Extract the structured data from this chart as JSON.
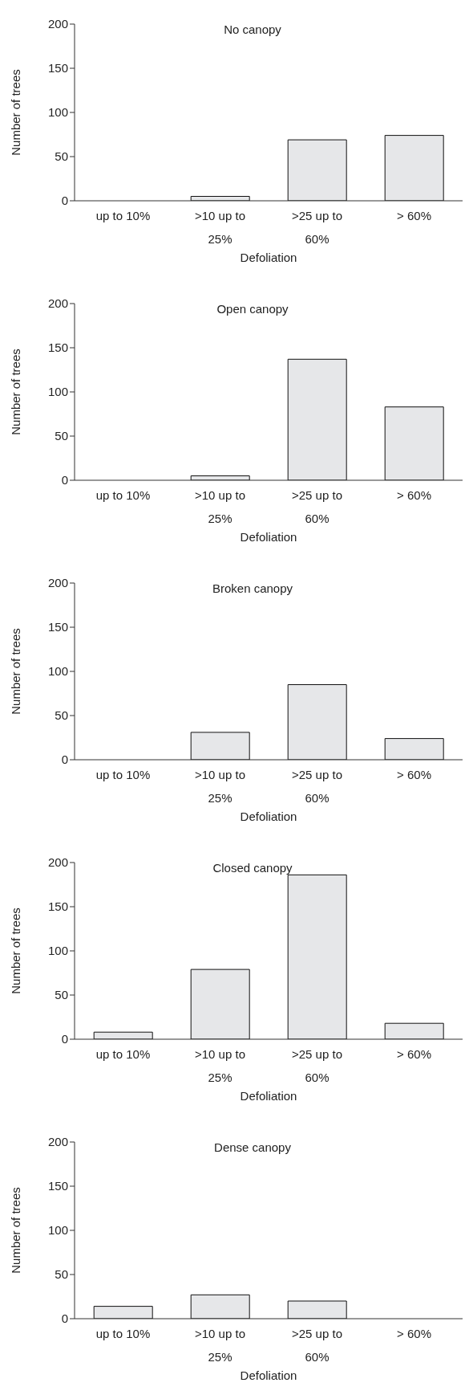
{
  "chart_data": [
    {
      "type": "bar",
      "title": "No canopy",
      "xlabel": "Defoliation",
      "ylabel": "Number of trees",
      "categories": [
        "up to 10%",
        ">10 up to 25%",
        ">25 up to 60%",
        "> 60%"
      ],
      "values": [
        0,
        5,
        69,
        74
      ],
      "color": "#e6e7e9",
      "ylim": [
        0,
        200
      ],
      "yticks": [
        0,
        50,
        100,
        150,
        200
      ]
    },
    {
      "type": "bar",
      "title": "Open canopy",
      "xlabel": "Defoliation",
      "ylabel": "Number of trees",
      "categories": [
        "up to 10%",
        ">10 up to 25%",
        ">25 up to 60%",
        "> 60%"
      ],
      "values": [
        0,
        5,
        137,
        83
      ],
      "color": "#e6e7e9",
      "ylim": [
        0,
        200
      ],
      "yticks": [
        0,
        50,
        100,
        150,
        200
      ]
    },
    {
      "type": "bar",
      "title": "Broken canopy",
      "xlabel": "Defoliation",
      "ylabel": "Number of trees",
      "categories": [
        "up to 10%",
        ">10 up to 25%",
        ">25 up to 60%",
        "> 60%"
      ],
      "values": [
        0,
        31,
        85,
        24
      ],
      "color": "#e6e7e9",
      "ylim": [
        0,
        200
      ],
      "yticks": [
        0,
        50,
        100,
        150,
        200
      ]
    },
    {
      "type": "bar",
      "title": "Closed canopy",
      "xlabel": "Defoliation",
      "ylabel": "Number of trees",
      "categories": [
        "up to 10%",
        ">10 up to 25%",
        ">25 up to 60%",
        "> 60%"
      ],
      "values": [
        8,
        79,
        186,
        18
      ],
      "color": "#e6e7e9",
      "ylim": [
        0,
        200
      ],
      "yticks": [
        0,
        50,
        100,
        150,
        200
      ]
    },
    {
      "type": "bar",
      "title": "Dense canopy",
      "xlabel": "Defoliation",
      "ylabel": "Number of trees",
      "categories": [
        "up to 10%",
        ">10 up to 25%",
        ">25 up to 60%",
        "> 60%"
      ],
      "values": [
        14,
        27,
        20,
        0
      ],
      "color": "#e6e7e9",
      "ylim": [
        0,
        200
      ],
      "yticks": [
        0,
        50,
        100,
        150,
        200
      ]
    }
  ]
}
